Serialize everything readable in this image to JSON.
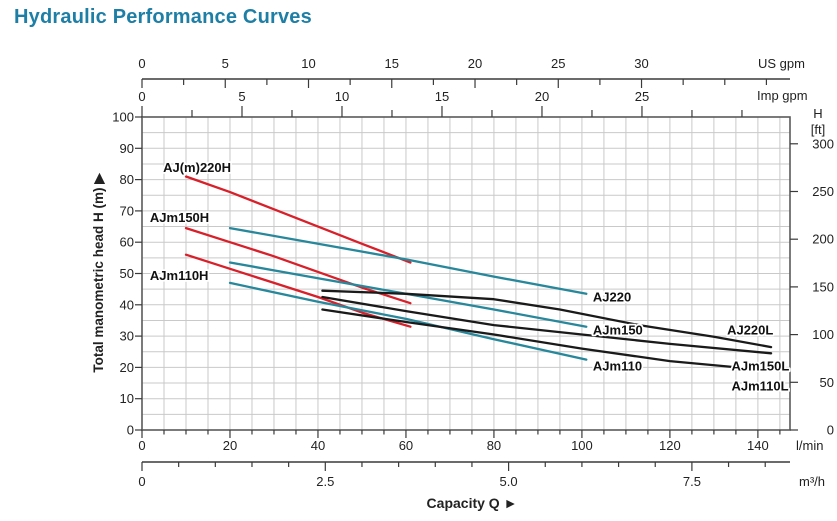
{
  "title": "Hydraulic Performance Curves",
  "chart_data": {
    "type": "line",
    "title": "Hydraulic Performance Curves",
    "xlabel": "Capacity Q",
    "xlabel_arrow": "►",
    "x_range_lpm": [
      0,
      147.3
    ],
    "y_range_m": [
      0,
      100
    ],
    "grid": {
      "x_step_lpm": 5,
      "y_step_m": 5,
      "visible": true
    },
    "colors": {
      "title": "#1e7fa6",
      "red": "#d8202a",
      "teal": "#27879b",
      "black": "#1a1a1a",
      "grid": "#c9c9c9",
      "frame": "#5a5a5a",
      "axis": "#3a3a3a",
      "text": "#222222"
    },
    "axes": {
      "top_us": {
        "unit_label": "US gpm",
        "ticks": [
          0,
          5,
          10,
          15,
          20,
          25,
          30
        ],
        "minor_step": 2.5,
        "lpm_per_unit": 3.785
      },
      "top_imp": {
        "unit_label": "Imp gpm",
        "ticks": [
          0,
          5,
          10,
          15,
          20,
          25
        ],
        "minor_step": 2.5,
        "lpm_per_unit": 4.546
      },
      "left": {
        "title": "Total manometric head H (m)",
        "arrow": "▶",
        "ticks": [
          0,
          10,
          20,
          30,
          40,
          50,
          60,
          70,
          80,
          90,
          100
        ]
      },
      "right": {
        "title_line1": "H",
        "title_line2": "[ft]",
        "ticks": [
          0,
          50,
          100,
          150,
          200,
          250,
          300
        ],
        "m_per_unit": 0.3048
      },
      "bottom_lpm": {
        "unit_label": "l/min",
        "ticks": [
          0,
          20,
          40,
          60,
          80,
          100,
          120,
          140
        ],
        "minor_step": 5
      },
      "bottom_m3h": {
        "unit_label": "m³/h",
        "tick_values": [
          0,
          2.5,
          5,
          7.5
        ],
        "tick_labels": [
          "0",
          "2.5",
          "5.0",
          "7.5"
        ],
        "minor_step": 0.5,
        "lpm_per_unit": 16.6667
      }
    },
    "series": [
      {
        "name": "AJ(m)220H",
        "color_key": "red",
        "points": [
          [
            10,
            81
          ],
          [
            20,
            76
          ],
          [
            30,
            70.5
          ],
          [
            40,
            65
          ],
          [
            50,
            59.5
          ],
          [
            61,
            53.5
          ]
        ],
        "label": {
          "q": 4.8,
          "h": 82.5
        }
      },
      {
        "name": "AJm150H",
        "color_key": "red",
        "points": [
          [
            10,
            64.5
          ],
          [
            20,
            60
          ],
          [
            30,
            55.5
          ],
          [
            40,
            50.5
          ],
          [
            50,
            45.5
          ],
          [
            61,
            40.5
          ]
        ],
        "label": {
          "q": 1.8,
          "h": 66.5
        }
      },
      {
        "name": "AJm110H",
        "color_key": "red",
        "points": [
          [
            10,
            56
          ],
          [
            20,
            51.5
          ],
          [
            30,
            47
          ],
          [
            40,
            42.5
          ],
          [
            50,
            37.5
          ],
          [
            61,
            33
          ]
        ],
        "label": {
          "q": 1.8,
          "h": 48
        }
      },
      {
        "name": "AJ220",
        "color_key": "teal",
        "points": [
          [
            20,
            64.5
          ],
          [
            40,
            59.5
          ],
          [
            60,
            54.5
          ],
          [
            80,
            49
          ],
          [
            101,
            43.5
          ]
        ],
        "label": {
          "q": 102.5,
          "h": 41
        }
      },
      {
        "name": "AJm150",
        "color_key": "teal",
        "points": [
          [
            20,
            53.5
          ],
          [
            40,
            48.5
          ],
          [
            60,
            43.5
          ],
          [
            80,
            38.5
          ],
          [
            101,
            33
          ]
        ],
        "label": {
          "q": 102.5,
          "h": 30.5
        }
      },
      {
        "name": "AJm110",
        "color_key": "teal",
        "points": [
          [
            20,
            47
          ],
          [
            40,
            41
          ],
          [
            60,
            35.5
          ],
          [
            80,
            29
          ],
          [
            101,
            22.5
          ]
        ],
        "label": {
          "q": 102.5,
          "h": 19
        }
      },
      {
        "name": "AJ220L",
        "color_key": "black",
        "points": [
          [
            41,
            44.5
          ],
          [
            60,
            43.5
          ],
          [
            80,
            41.8
          ],
          [
            95,
            38.5
          ],
          [
            113,
            33.5
          ],
          [
            130,
            29.8
          ],
          [
            143,
            26.5
          ]
        ],
        "label": {
          "q": 133,
          "h": 30.5
        }
      },
      {
        "name": "AJm150L",
        "color_key": "black",
        "points": [
          [
            41,
            42.5
          ],
          [
            60,
            38
          ],
          [
            80,
            33.5
          ],
          [
            100,
            30.5
          ],
          [
            120,
            27.5
          ],
          [
            143,
            24.5
          ]
        ],
        "label": {
          "q": 134,
          "h": 19
        }
      },
      {
        "name": "AJm110L",
        "color_key": "black",
        "points": [
          [
            41,
            38.5
          ],
          [
            60,
            34.5
          ],
          [
            80,
            30.5
          ],
          [
            100,
            26
          ],
          [
            120,
            22
          ],
          [
            143,
            19
          ]
        ],
        "label": {
          "q": 134,
          "h": 12.6
        }
      }
    ]
  }
}
